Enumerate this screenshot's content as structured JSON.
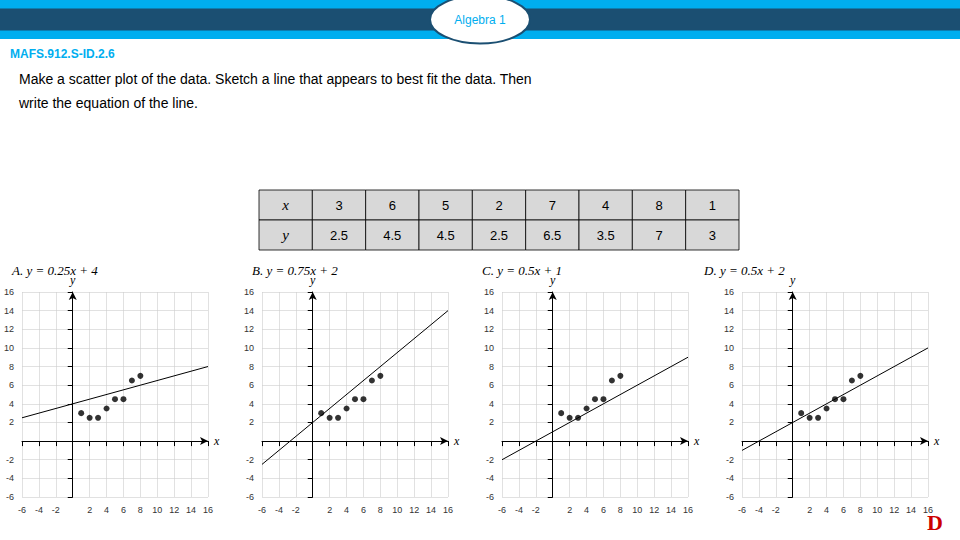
{
  "title": "Algebra 1",
  "subtitle": "MAFS.912.S-ID.2.6",
  "annotations": [
    "Make a scatter plot of the data. Sketch a line that appears to best fit the data. Then",
    "write the equation of the line.",
    "D"
  ],
  "chart_data": [
    {
      "type": "scatter",
      "title": "A. y = 0.25x + 4",
      "xlabel": "x",
      "ylabel": "y",
      "xlim": [
        -6,
        16
      ],
      "ylim": [
        -6,
        16
      ],
      "xticks": [
        -6,
        -4,
        -2,
        2,
        4,
        6,
        8,
        10,
        12,
        14,
        16
      ],
      "yticks": [
        -6,
        -4,
        -2,
        2,
        4,
        6,
        8,
        10,
        12,
        14,
        16
      ],
      "grid": true,
      "series": [
        {
          "type": "scatter",
          "color": "#000000",
          "x": [
            3,
            6,
            5,
            2,
            7,
            4,
            8,
            1
          ],
          "values": [
            2.5,
            4.5,
            4.5,
            2.5,
            6.5,
            3.5,
            7,
            3
          ]
        },
        {
          "type": "line",
          "color": "#000000",
          "x": [
            -6,
            16
          ],
          "values": [
            2.5,
            8
          ]
        }
      ]
    },
    {
      "type": "scatter",
      "title": "B. y = 0.75x + 2",
      "xlabel": "x",
      "ylabel": "y",
      "xlim": [
        -6,
        16
      ],
      "ylim": [
        -6,
        16
      ],
      "xticks": [
        -6,
        -4,
        -2,
        2,
        4,
        6,
        8,
        10,
        12,
        14,
        16
      ],
      "yticks": [
        -6,
        -4,
        -2,
        2,
        4,
        6,
        8,
        10,
        12,
        14,
        16
      ],
      "grid": true,
      "series": [
        {
          "type": "scatter",
          "color": "#000000",
          "x": [
            3,
            6,
            5,
            2,
            7,
            4,
            8,
            1
          ],
          "values": [
            2.5,
            4.5,
            4.5,
            2.5,
            6.5,
            3.5,
            7,
            3
          ]
        },
        {
          "type": "line",
          "color": "#000000",
          "x": [
            -6,
            16
          ],
          "values": [
            -2.5,
            14
          ]
        }
      ]
    },
    {
      "type": "scatter",
      "title": "C. y = 0.5x + 1",
      "xlabel": "x",
      "ylabel": "y",
      "xlim": [
        -6,
        16
      ],
      "ylim": [
        -6,
        16
      ],
      "xticks": [
        -6,
        -4,
        -2,
        2,
        4,
        6,
        8,
        10,
        12,
        14,
        16
      ],
      "yticks": [
        -6,
        -4,
        -2,
        2,
        4,
        6,
        8,
        10,
        12,
        14,
        16
      ],
      "grid": true,
      "series": [
        {
          "type": "scatter",
          "color": "#000000",
          "x": [
            3,
            6,
            5,
            2,
            7,
            4,
            8,
            1
          ],
          "values": [
            2.5,
            4.5,
            4.5,
            2.5,
            6.5,
            3.5,
            7,
            3
          ]
        },
        {
          "type": "line",
          "color": "#000000",
          "x": [
            -6,
            16
          ],
          "values": [
            -2,
            9
          ]
        }
      ]
    },
    {
      "type": "scatter",
      "title": "D. y = 0.5x + 2",
      "xlabel": "x",
      "ylabel": "y",
      "xlim": [
        -6,
        16
      ],
      "ylim": [
        -6,
        16
      ],
      "xticks": [
        -6,
        -4,
        -2,
        2,
        4,
        6,
        8,
        10,
        12,
        14,
        16
      ],
      "yticks": [
        -6,
        -4,
        -2,
        2,
        4,
        6,
        8,
        10,
        12,
        14,
        16
      ],
      "grid": true,
      "series": [
        {
          "type": "scatter",
          "color": "#000000",
          "x": [
            3,
            6,
            5,
            2,
            7,
            4,
            8,
            1
          ],
          "values": [
            2.5,
            4.5,
            4.5,
            2.5,
            6.5,
            3.5,
            7,
            3
          ]
        },
        {
          "type": "line",
          "color": "#000000",
          "x": [
            -6,
            16
          ],
          "values": [
            -1,
            10
          ]
        }
      ]
    }
  ]
}
